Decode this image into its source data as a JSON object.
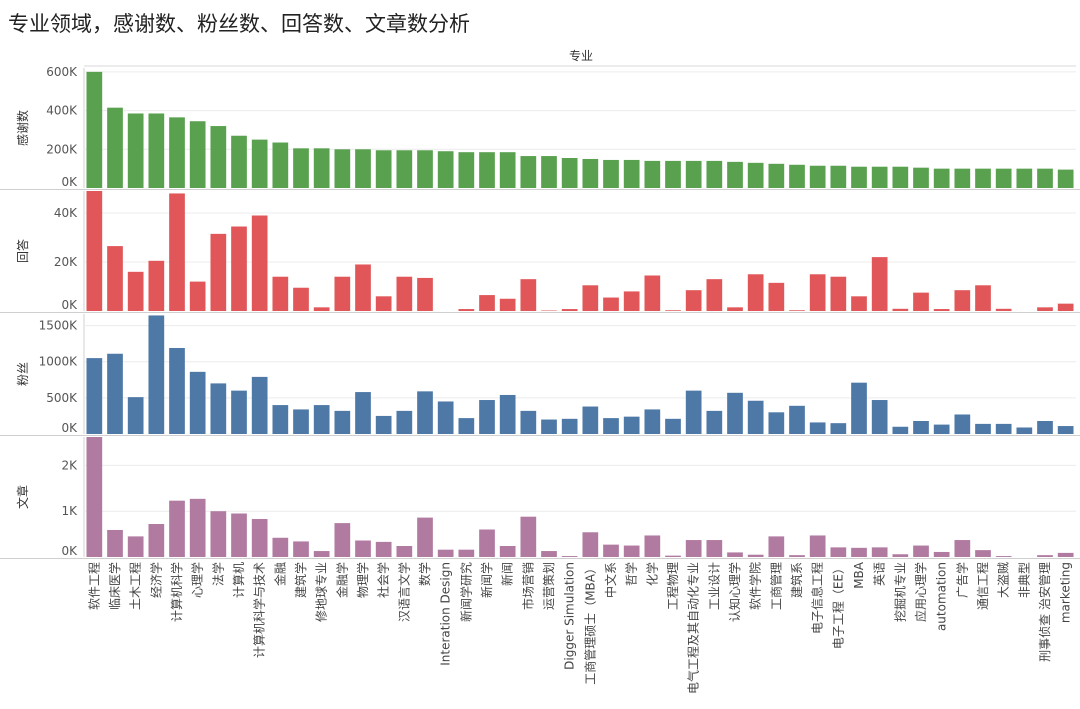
{
  "page": {
    "title": "专业领域，感谢数、粉丝数、回答数、文章数分析"
  },
  "colors": {
    "thanks": "#59A14F",
    "answers": "#E15759",
    "fans": "#4E79A7",
    "articles": "#B07AA1"
  },
  "chart_data": {
    "type": "bar",
    "column_header": "专业",
    "categories": [
      "软件工程",
      "临床医学",
      "土木工程",
      "经济学",
      "计算机科学",
      "心理学",
      "法学",
      "计算机",
      "计算机科学与技术",
      "金融",
      "建筑学",
      "修地球专业",
      "金融学",
      "物理学",
      "社会学",
      "汉语言文学",
      "数学",
      "Interation Design",
      "新闻学研究",
      "新闻学",
      "新闻",
      "市场营销",
      "运营策划",
      "Digger Simulation",
      "工商管理硕士（MBA）",
      "中文系",
      "哲学",
      "化学",
      "工程物理",
      "电气工程及其自动化专业",
      "工业设计",
      "认知心理学",
      "软件学院",
      "工商管理",
      "建筑系",
      "电子信息工程",
      "电子工程（EE）",
      "MBA",
      "英语",
      "挖掘机专业",
      "应用心理学",
      "automation",
      "广告学",
      "通信工程",
      "大盗贼",
      "非典型",
      "刑事侦查 治安管理",
      "marketing"
    ],
    "series": [
      {
        "name": "感谢数",
        "color": "#59A14F",
        "ticks": [
          "600K",
          "400K",
          "200K",
          "0K"
        ],
        "ylim": [
          0,
          620000
        ],
        "values": [
          600000,
          415000,
          385000,
          385000,
          365000,
          345000,
          320000,
          270000,
          250000,
          235000,
          205000,
          205000,
          200000,
          200000,
          195000,
          195000,
          195000,
          190000,
          185000,
          185000,
          185000,
          165000,
          165000,
          155000,
          150000,
          145000,
          145000,
          140000,
          140000,
          140000,
          140000,
          135000,
          130000,
          125000,
          120000,
          115000,
          115000,
          110000,
          110000,
          110000,
          105000,
          100000,
          100000,
          100000,
          100000,
          100000,
          100000,
          95000
        ]
      },
      {
        "name": "回答",
        "color": "#E15759",
        "ticks": [
          "40K",
          "20K",
          "0K"
        ],
        "ylim": [
          0,
          49000
        ],
        "values": [
          49000,
          26500,
          16000,
          20500,
          48000,
          12000,
          31500,
          34500,
          39000,
          14000,
          9500,
          1500,
          14000,
          19000,
          6000,
          14000,
          13500,
          0,
          800,
          6500,
          5000,
          13000,
          200,
          800,
          10500,
          5500,
          8000,
          14500,
          300,
          8500,
          13000,
          1500,
          15000,
          11500,
          300,
          15000,
          14000,
          6000,
          22000,
          900,
          7500,
          800,
          8500,
          10500,
          900,
          0,
          1500,
          3000
        ]
      },
      {
        "name": "粉丝",
        "color": "#4E79A7",
        "ticks": [
          "1500K",
          "1000K",
          "500K",
          "0K"
        ],
        "ylim": [
          0,
          1660000
        ],
        "values": [
          1050000,
          1110000,
          510000,
          1640000,
          1190000,
          860000,
          700000,
          600000,
          790000,
          400000,
          340000,
          400000,
          320000,
          580000,
          250000,
          320000,
          590000,
          450000,
          220000,
          470000,
          540000,
          320000,
          200000,
          210000,
          380000,
          220000,
          240000,
          340000,
          210000,
          600000,
          320000,
          570000,
          460000,
          300000,
          390000,
          160000,
          150000,
          710000,
          470000,
          100000,
          180000,
          130000,
          270000,
          140000,
          140000,
          90000,
          180000,
          110000
        ]
      },
      {
        "name": "文章",
        "color": "#B07AA1",
        "ticks": [
          "2K",
          "1K",
          "0K"
        ],
        "ylim": [
          0,
          2620
        ],
        "values": [
          2620,
          590,
          450,
          720,
          1230,
          1270,
          1000,
          950,
          830,
          420,
          340,
          130,
          740,
          360,
          330,
          240,
          860,
          160,
          160,
          600,
          240,
          880,
          130,
          20,
          540,
          270,
          250,
          470,
          30,
          370,
          370,
          100,
          50,
          450,
          40,
          470,
          210,
          200,
          210,
          60,
          250,
          110,
          370,
          150,
          20,
          0,
          40,
          90
        ]
      }
    ]
  }
}
